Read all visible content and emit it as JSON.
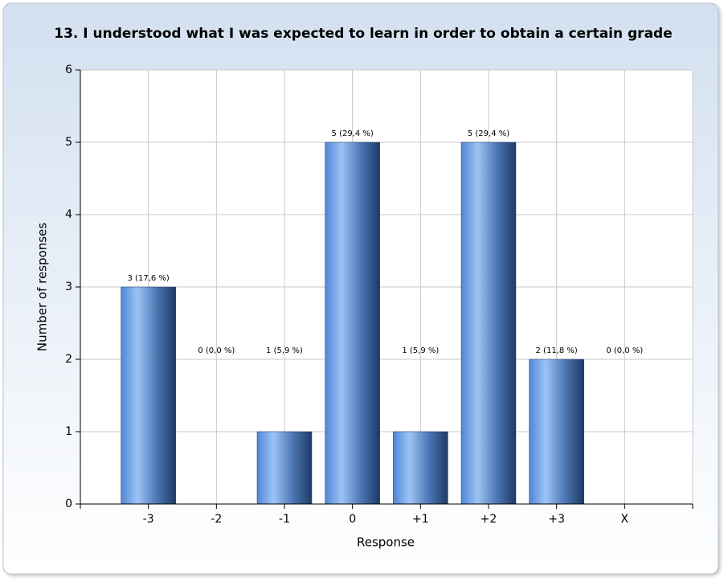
{
  "chart_data": {
    "type": "bar",
    "title": "13. I understood what I was expected to learn in order to obtain a certain grade",
    "x_label": "Response",
    "y_label": "Number of responses",
    "categories": [
      "-3",
      "-2",
      "-1",
      "0",
      "+1",
      "+2",
      "+3",
      "X"
    ],
    "values": [
      3,
      0,
      1,
      5,
      1,
      5,
      2,
      0
    ],
    "value_labels": [
      "3 (17,6 %)",
      "0 (0,0 %)",
      "1 (5,9 %)",
      "5 (29,4 %)",
      "1 (5,9 %)",
      "5 (29,4 %)",
      "2 (11,8 %)",
      "0 (0,0 %)"
    ],
    "color": "#4f86d6",
    "ylim": [
      0,
      6
    ],
    "yticks": [
      0,
      1,
      2,
      3,
      4,
      5,
      6
    ],
    "grid": true
  }
}
